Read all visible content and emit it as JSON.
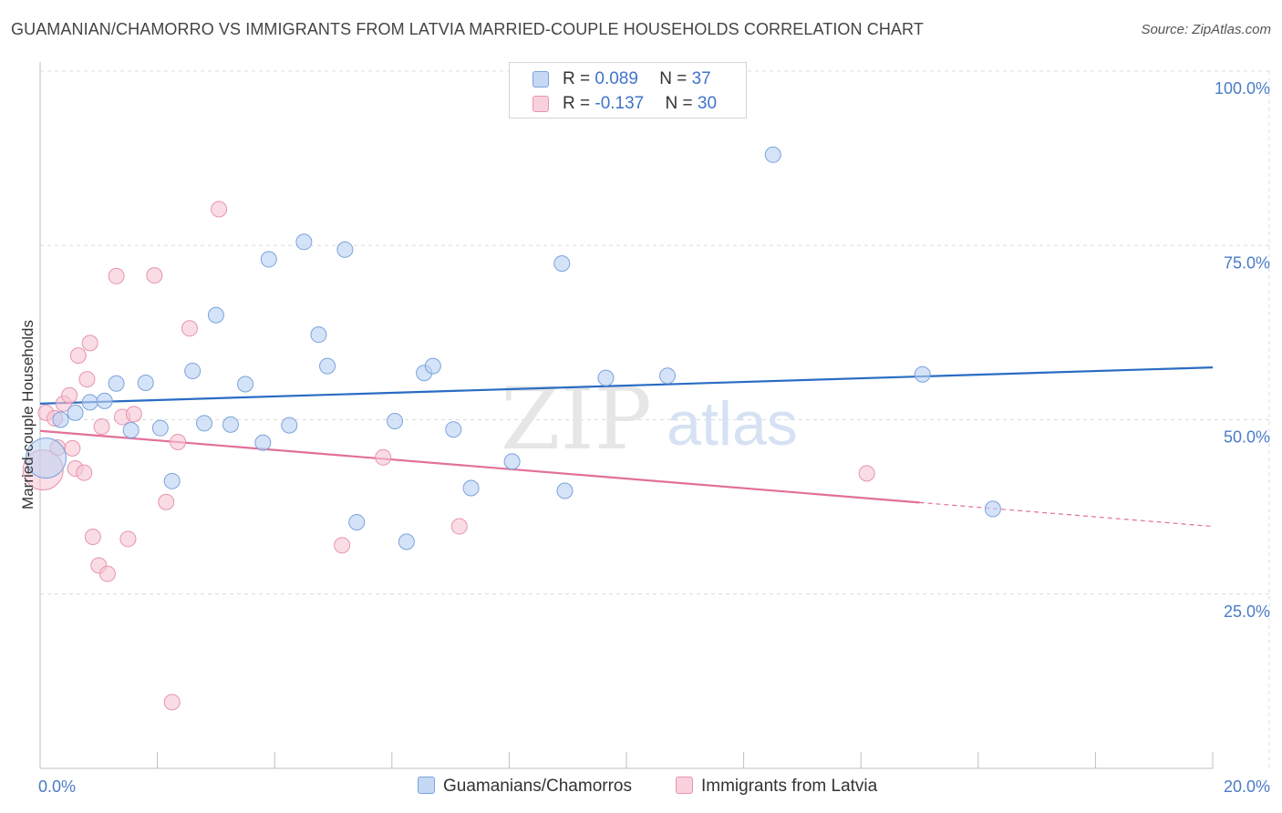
{
  "header": {
    "title": "GUAMANIAN/CHAMORRO VS IMMIGRANTS FROM LATVIA MARRIED-COUPLE HOUSEHOLDS CORRELATION CHART",
    "source": "Source: ZipAtlas.com"
  },
  "watermark": {
    "zip": "ZIP",
    "atlas": "atlas"
  },
  "legend": {
    "rows": [
      {
        "r_label": "R = ",
        "r_value": "0.089",
        "n_label": "N = ",
        "n_value": "37"
      },
      {
        "r_label": "R = ",
        "r_value": "-0.137",
        "n_label": "N = ",
        "n_value": "30"
      }
    ]
  },
  "colors": {
    "blue_fill": "#b9d1f3",
    "blue_stroke": "#7ba3dc",
    "blue_line": "#2a6cc4",
    "pink_fill": "#f7c5d3",
    "pink_stroke": "#e695ad",
    "pink_line": "#e2709a",
    "grid": "#dcdcdc",
    "axis_text": "#4a7cc7"
  },
  "chart_data": {
    "type": "scatter",
    "title": "GUAMANIAN/CHAMORRO VS IMMIGRANTS FROM LATVIA MARRIED-COUPLE HOUSEHOLDS CORRELATION CHART",
    "xlabel": "",
    "ylabel": "Married-couple Households",
    "xlim": [
      0,
      20
    ],
    "ylim": [
      0,
      100
    ],
    "x_tick_labels": [
      "0.0%",
      "20.0%"
    ],
    "y_ticks": [
      25,
      50,
      75,
      100
    ],
    "y_tick_labels": [
      "25.0%",
      "50.0%",
      "75.0%",
      "100.0%"
    ],
    "grid": true,
    "legend_position": "bottom-center",
    "series": [
      {
        "name": "Guamanians/Chamorros",
        "color": "#b9d1f3",
        "points": [
          {
            "x": 0.1,
            "y": 44.5,
            "big": true
          },
          {
            "x": 0.35,
            "y": 50.0
          },
          {
            "x": 0.6,
            "y": 51.0
          },
          {
            "x": 0.85,
            "y": 52.5
          },
          {
            "x": 1.1,
            "y": 52.7
          },
          {
            "x": 1.3,
            "y": 55.2
          },
          {
            "x": 1.55,
            "y": 48.5
          },
          {
            "x": 1.8,
            "y": 55.3
          },
          {
            "x": 2.05,
            "y": 48.8
          },
          {
            "x": 2.25,
            "y": 41.2
          },
          {
            "x": 2.6,
            "y": 57.0
          },
          {
            "x": 2.8,
            "y": 49.5
          },
          {
            "x": 3.0,
            "y": 65.0
          },
          {
            "x": 3.25,
            "y": 49.3
          },
          {
            "x": 3.5,
            "y": 55.1
          },
          {
            "x": 3.8,
            "y": 46.7
          },
          {
            "x": 3.9,
            "y": 73.0
          },
          {
            "x": 4.25,
            "y": 49.2
          },
          {
            "x": 4.5,
            "y": 75.5
          },
          {
            "x": 4.75,
            "y": 62.2
          },
          {
            "x": 4.9,
            "y": 57.7
          },
          {
            "x": 5.2,
            "y": 74.4
          },
          {
            "x": 5.4,
            "y": 35.3
          },
          {
            "x": 6.05,
            "y": 49.8
          },
          {
            "x": 6.25,
            "y": 32.5
          },
          {
            "x": 6.55,
            "y": 56.7
          },
          {
            "x": 6.7,
            "y": 57.7
          },
          {
            "x": 7.05,
            "y": 48.6
          },
          {
            "x": 7.35,
            "y": 40.2
          },
          {
            "x": 8.05,
            "y": 44.0
          },
          {
            "x": 8.9,
            "y": 72.4
          },
          {
            "x": 8.95,
            "y": 39.8
          },
          {
            "x": 9.65,
            "y": 56.0
          },
          {
            "x": 10.7,
            "y": 56.3
          },
          {
            "x": 12.5,
            "y": 88.0
          },
          {
            "x": 15.05,
            "y": 56.5
          },
          {
            "x": 16.25,
            "y": 37.2
          }
        ],
        "trend": {
          "x0": 0,
          "y0": 52.3,
          "x1": 20,
          "y1": 57.5,
          "solid_until": 20
        }
      },
      {
        "name": "Immigrants from Latvia",
        "color": "#f7c5d3",
        "points": [
          {
            "x": 0.05,
            "y": 42.8,
            "big": true
          },
          {
            "x": 0.1,
            "y": 51.0
          },
          {
            "x": 0.25,
            "y": 50.2
          },
          {
            "x": 0.3,
            "y": 46.0
          },
          {
            "x": 0.4,
            "y": 52.3
          },
          {
            "x": 0.5,
            "y": 53.5
          },
          {
            "x": 0.55,
            "y": 45.9
          },
          {
            "x": 0.6,
            "y": 43.0
          },
          {
            "x": 0.65,
            "y": 59.2
          },
          {
            "x": 0.75,
            "y": 42.4
          },
          {
            "x": 0.8,
            "y": 55.8
          },
          {
            "x": 0.85,
            "y": 61.0
          },
          {
            "x": 0.9,
            "y": 33.2
          },
          {
            "x": 1.0,
            "y": 29.1
          },
          {
            "x": 1.05,
            "y": 49.0
          },
          {
            "x": 1.15,
            "y": 27.9
          },
          {
            "x": 1.3,
            "y": 70.6
          },
          {
            "x": 1.4,
            "y": 50.4
          },
          {
            "x": 1.5,
            "y": 32.9
          },
          {
            "x": 1.6,
            "y": 50.8
          },
          {
            "x": 1.95,
            "y": 70.7
          },
          {
            "x": 2.15,
            "y": 38.2
          },
          {
            "x": 2.25,
            "y": 9.5
          },
          {
            "x": 2.35,
            "y": 46.8
          },
          {
            "x": 2.55,
            "y": 63.1
          },
          {
            "x": 3.05,
            "y": 80.2
          },
          {
            "x": 5.15,
            "y": 32.0
          },
          {
            "x": 5.85,
            "y": 44.6
          },
          {
            "x": 7.15,
            "y": 34.7
          },
          {
            "x": 14.1,
            "y": 42.3
          }
        ],
        "trend": {
          "x0": 0,
          "y0": 48.4,
          "x1": 20,
          "y1": 34.7,
          "solid_until": 15
        }
      }
    ]
  },
  "bottom_legend": {
    "items": [
      "Guamanians/Chamorros",
      "Immigrants from Latvia"
    ]
  }
}
